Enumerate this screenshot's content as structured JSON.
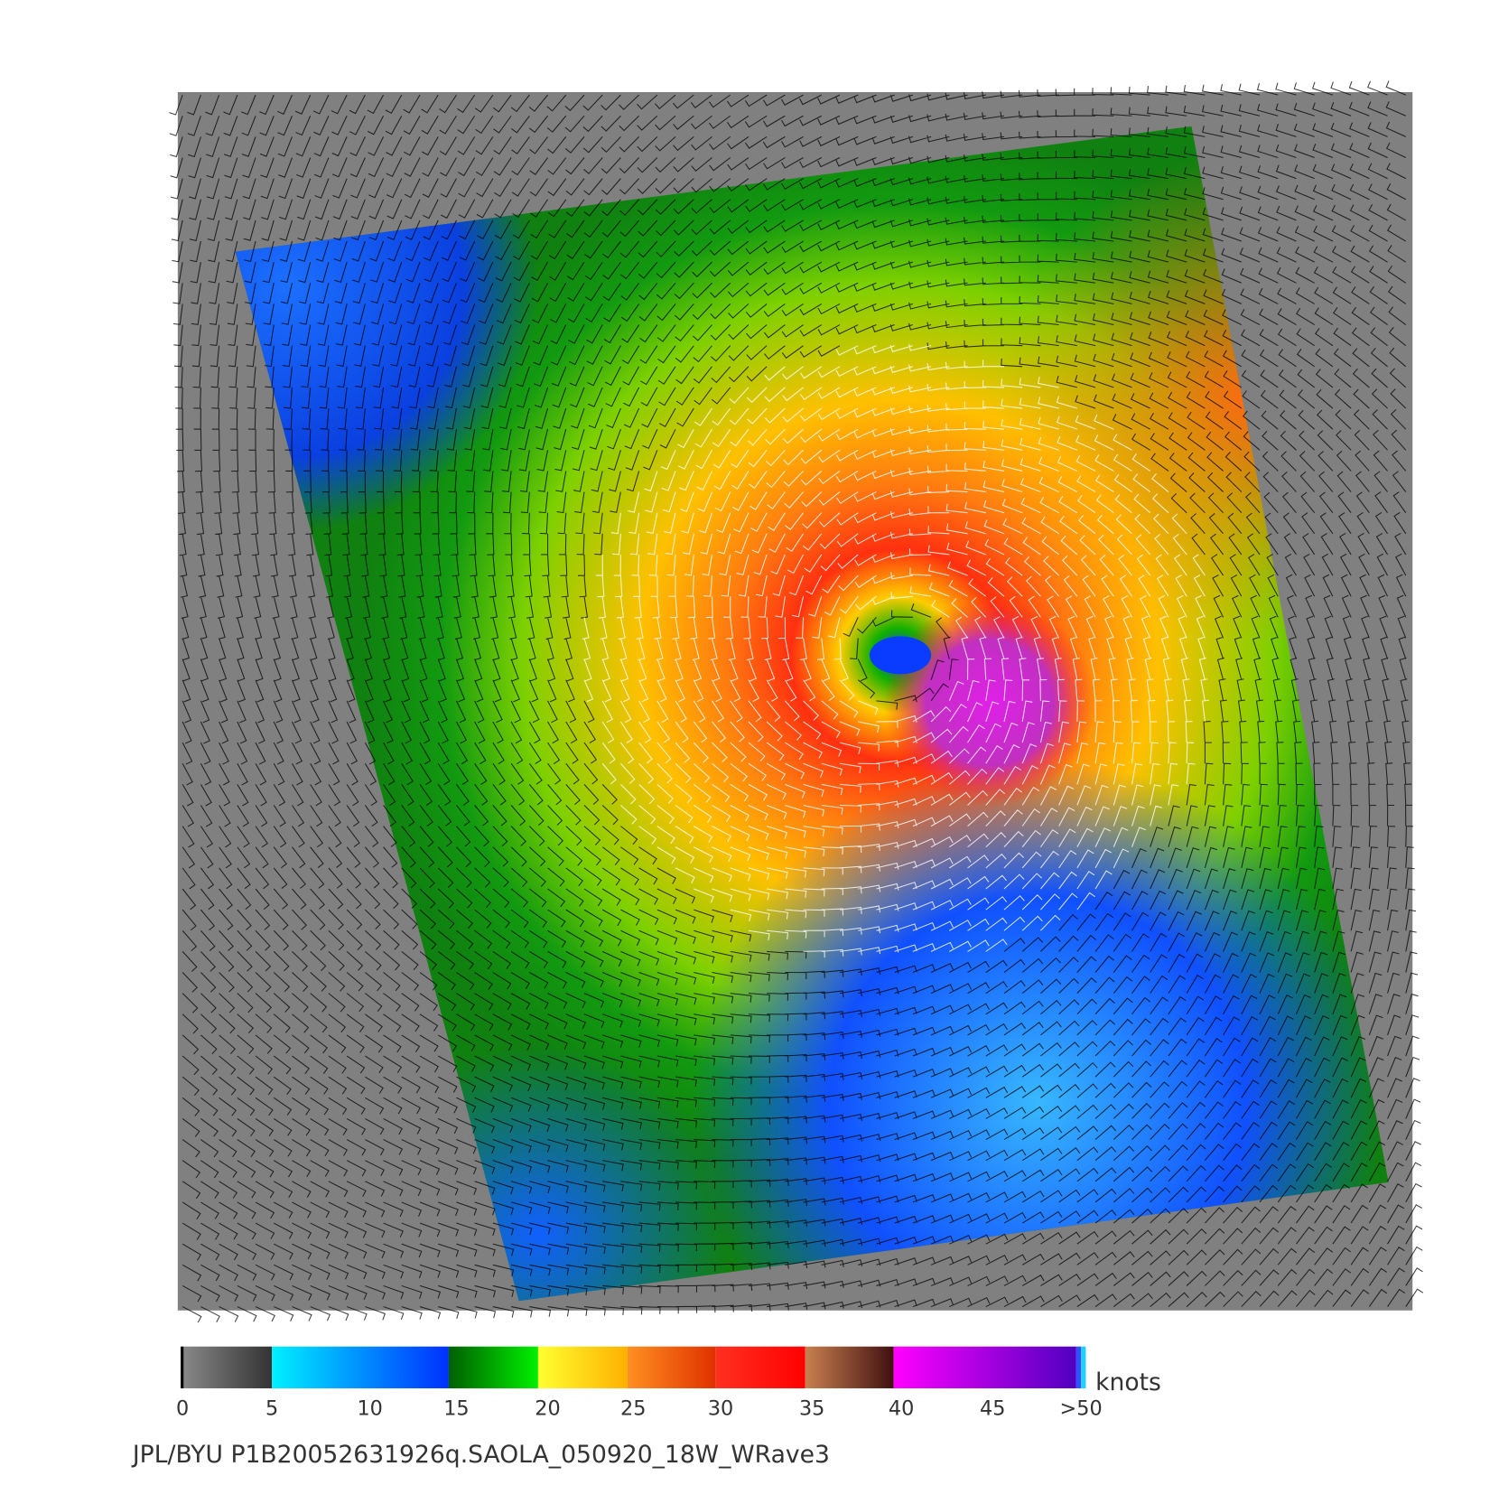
{
  "colorbar": {
    "ticks": [
      "0",
      "5",
      "10",
      "15",
      "20",
      "25",
      "30",
      "35",
      "40",
      "45",
      ">50"
    ],
    "unit": "knots"
  },
  "footer": "JPL/BYU  P1B20052631926q.SAOLA_050920_18W_WRave3"
}
